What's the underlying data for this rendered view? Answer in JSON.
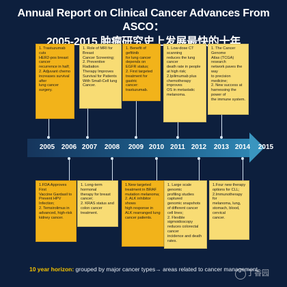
{
  "title": {
    "line1": "Annual Report on Clinical Cancer Advances From ASCO：",
    "line2": "2005-2015 肿瘤研究史上发展最快的十年"
  },
  "colors": {
    "background": "#0d1f3d",
    "box_yellow": "#f8dc74",
    "box_orange": "#f2b31a",
    "year_text": "#ffffff",
    "footer_highlight": "#f4c200"
  },
  "years": [
    "2005",
    "2006",
    "2007",
    "2008",
    "2009",
    "2010",
    "2011",
    "2012",
    "2013",
    "2014",
    "2015"
  ],
  "top_boxes": [
    {
      "year": "2005-2006",
      "color": "orange",
      "lines": [
        "1. Trastuzumab cuts",
        "HER2-pos breast cancer",
        "recurrence in half;",
        "2. Adjuvant chemo",
        "increases survival after",
        "lung cancer surgery."
      ]
    },
    {
      "year": "2007",
      "color": "yellow",
      "lines": [
        "1. Role of MRI for Breast",
        "Cancer Screening;",
        "2. Preventive Radiation",
        "Therapy Improves",
        "Survival for Patients",
        "With Small-Cell lung",
        "Cancer."
      ]
    },
    {
      "year": "2009",
      "color": "orange",
      "lines": [
        "1. Benefit of gefitinib",
        "for lung cancer depends on",
        "EGFR status;",
        "2. First targeted",
        "treatment for gastric",
        "cancer: trastuzumab."
      ]
    },
    {
      "year": "2011",
      "color": "yellow",
      "lines": [
        "1. Low-dose CT scanning",
        "reduces the lung cancer",
        "death rate in people",
        "at high risk;",
        "2.Ipilimumab plus",
        "chemotherapy improves",
        "OS in metastatic",
        "melanoma."
      ]
    },
    {
      "year": "2013",
      "color": "yellow",
      "lines": [
        "1. The Cancer Genome",
        "Atlas (TCGA) research",
        "network paves the way",
        "to precision medicine;",
        "2. New success at",
        "harnessing the power of",
        "the immune system."
      ]
    }
  ],
  "bottom_boxes": [
    {
      "year": "2006",
      "color": "orange",
      "lines": [
        "1.FDA Approves First",
        "Vaccine Gardasil to",
        "Prevent HPV Infection;",
        "2. Temsirolimus in",
        "advanced, high-risk",
        "kidney cancer."
      ]
    },
    {
      "year": "2008",
      "color": "yellow",
      "lines": [
        "1. Long-term hormonal",
        "therapy for breast",
        "cancer;",
        "2. KRAS status and",
        "colon cancer treatment."
      ]
    },
    {
      "year": "2010",
      "color": "orange",
      "lines": [
        "1.New targeted",
        "treatment in BRAF",
        "mutation melanoma;",
        "2. ALK inhibitor shows",
        "high response in",
        "ALK rearranged lung",
        "cancer patients."
      ]
    },
    {
      "year": "2012",
      "color": "yellow",
      "lines": [
        "1. Large scale genomic",
        "profiling studies captured",
        "genomic snapshots",
        "of different cancer cell lines;",
        "2. Flexible sigmoidoscopy",
        "reduces colorectal cancer",
        "incidence and death rates."
      ]
    },
    {
      "year": "2014",
      "color": "yellow",
      "lines": [
        "1.Four new therapy",
        "options for CLL;",
        "2.Immunotherapy for",
        "melanoma, lung,",
        "stomach, blood, cervical",
        "cancer."
      ]
    }
  ],
  "footer": {
    "highlight": "10 year horizon:",
    "text": "grouped by major cancer types→ areas related to cancer management"
  },
  "watermark": {
    "text": "丁香园",
    "icon": "dxy-logo-icon"
  }
}
